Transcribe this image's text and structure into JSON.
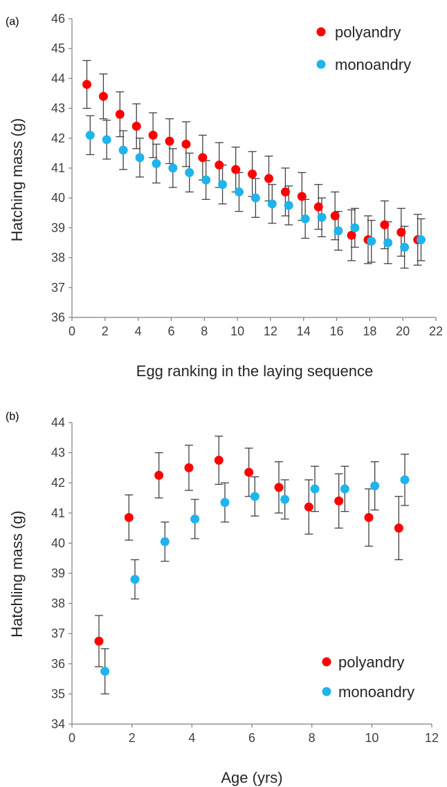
{
  "colors": {
    "polyandry": "#ff0000",
    "monoandry": "#1fb4ec",
    "error_bar": "#404040",
    "axis": "#7f7f7f"
  },
  "chart_data": [
    {
      "panel": "(a)",
      "type": "scatter",
      "xlabel": "Egg ranking in the laying sequence",
      "ylabel": "Hatching mass (g)",
      "xlim": [
        0,
        22
      ],
      "ylim": [
        36,
        46
      ],
      "xticks": [
        0,
        2,
        4,
        6,
        8,
        10,
        12,
        14,
        16,
        18,
        20,
        22
      ],
      "yticks": [
        36,
        37,
        38,
        39,
        40,
        41,
        42,
        43,
        44,
        45,
        46
      ],
      "legend_position": "top-right",
      "grid": false,
      "series": [
        {
          "name": "polyandry",
          "color": "#ff0000",
          "x": [
            0.9,
            1.9,
            2.9,
            3.9,
            4.9,
            5.9,
            6.9,
            7.9,
            8.9,
            9.9,
            10.9,
            11.9,
            12.9,
            13.9,
            14.9,
            15.9,
            16.9,
            17.9,
            18.9,
            19.9,
            20.9
          ],
          "y": [
            43.8,
            43.4,
            42.8,
            42.4,
            42.1,
            41.9,
            41.8,
            41.35,
            41.1,
            40.95,
            40.8,
            40.65,
            40.2,
            40.05,
            39.7,
            39.4,
            38.75,
            38.6,
            39.1,
            38.85,
            38.6
          ],
          "err": [
            0.8,
            0.75,
            0.75,
            0.75,
            0.75,
            0.75,
            0.75,
            0.75,
            0.75,
            0.75,
            0.75,
            0.75,
            0.8,
            0.8,
            0.75,
            0.8,
            0.85,
            0.8,
            0.8,
            0.8,
            0.85
          ]
        },
        {
          "name": "monoandry",
          "color": "#1fb4ec",
          "x": [
            1.1,
            2.1,
            3.1,
            4.1,
            5.1,
            6.1,
            7.1,
            8.1,
            9.1,
            10.1,
            11.1,
            12.1,
            13.1,
            14.1,
            15.1,
            16.1,
            17.1,
            18.1,
            19.1,
            20.1,
            21.1
          ],
          "y": [
            42.1,
            41.95,
            41.6,
            41.35,
            41.15,
            41.0,
            40.85,
            40.6,
            40.45,
            40.2,
            40.0,
            39.8,
            39.75,
            39.3,
            39.35,
            38.9,
            39.0,
            38.55,
            38.5,
            38.35,
            38.6
          ],
          "err": [
            0.65,
            0.65,
            0.65,
            0.65,
            0.65,
            0.65,
            0.65,
            0.65,
            0.65,
            0.65,
            0.65,
            0.65,
            0.65,
            0.65,
            0.65,
            0.65,
            0.65,
            0.7,
            0.7,
            0.7,
            0.7
          ]
        }
      ]
    },
    {
      "panel": "(b)",
      "type": "scatter",
      "xlabel": "Age (yrs)",
      "ylabel": "Hatchling mass (g)",
      "xlim": [
        0,
        12
      ],
      "ylim": [
        34,
        44
      ],
      "xticks": [
        0,
        2,
        4,
        6,
        8,
        10,
        12
      ],
      "yticks": [
        34,
        35,
        36,
        37,
        38,
        39,
        40,
        41,
        42,
        43,
        44
      ],
      "legend_position": "bottom-right",
      "grid": false,
      "series": [
        {
          "name": "polyandry",
          "color": "#ff0000",
          "x": [
            0.9,
            1.9,
            2.9,
            3.9,
            4.9,
            5.9,
            6.9,
            7.9,
            8.9,
            9.9,
            10.9
          ],
          "y": [
            36.75,
            40.85,
            42.25,
            42.5,
            42.75,
            42.35,
            41.85,
            41.2,
            41.4,
            40.85,
            40.5
          ],
          "err": [
            0.85,
            0.75,
            0.75,
            0.75,
            0.8,
            0.8,
            0.85,
            0.9,
            0.9,
            0.95,
            1.05
          ]
        },
        {
          "name": "monoandry",
          "color": "#1fb4ec",
          "x": [
            1.1,
            2.1,
            3.1,
            4.1,
            5.1,
            6.1,
            7.1,
            8.1,
            9.1,
            10.1,
            11.1
          ],
          "y": [
            35.75,
            38.8,
            40.05,
            40.8,
            41.35,
            41.55,
            41.45,
            41.8,
            41.8,
            41.9,
            42.1
          ],
          "err": [
            0.75,
            0.65,
            0.65,
            0.65,
            0.65,
            0.65,
            0.65,
            0.75,
            0.75,
            0.8,
            0.85
          ]
        }
      ]
    }
  ]
}
